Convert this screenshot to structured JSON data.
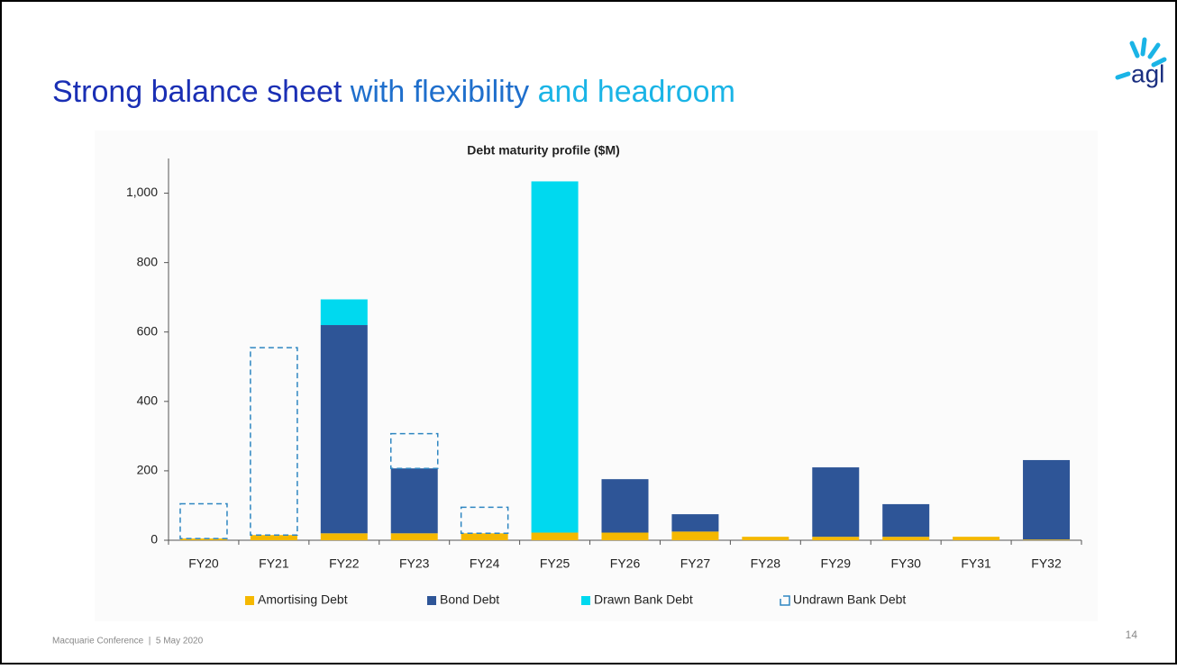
{
  "slide": {
    "title_parts": [
      {
        "text": "Strong balance sheet",
        "color": "#1a2fb4"
      },
      {
        "text": "with flexibility",
        "color": "#1f6fcc"
      },
      {
        "text": "and headroom",
        "color": "#1ab4e6"
      }
    ],
    "logo": "agl",
    "footer": "Macquarie Conference  |  5 May 2020",
    "page_number": "14"
  },
  "chart_data": {
    "type": "stacked_bar",
    "title": "Debt maturity profile ($M)",
    "categories": [
      "FY20",
      "FY21",
      "FY22",
      "FY23",
      "FY24",
      "FY25",
      "FY26",
      "FY27",
      "FY28",
      "FY29",
      "FY30",
      "FY31",
      "FY32"
    ],
    "series": [
      {
        "name": "Amortising Debt",
        "color": "#f5b800",
        "values": [
          5,
          15,
          20,
          20,
          20,
          22,
          22,
          25,
          10,
          10,
          10,
          10,
          2
        ]
      },
      {
        "name": "Bond Debt",
        "color": "#2e5597",
        "values": [
          null,
          null,
          600,
          187,
          null,
          null,
          154,
          50,
          null,
          200,
          94,
          null,
          229
        ]
      },
      {
        "name": "Drawn Bank Debt",
        "color": "#00d9ef",
        "values": [
          null,
          null,
          74,
          null,
          null,
          1012,
          null,
          null,
          null,
          null,
          null,
          null,
          null
        ]
      },
      {
        "name": "Undrawn Bank Debt",
        "color": "#2e86c1",
        "style": "dashed",
        "values": [
          100,
          540,
          null,
          100,
          75,
          null,
          null,
          null,
          null,
          null,
          null,
          null,
          null
        ]
      }
    ],
    "ylim": [
      0,
      1100
    ],
    "yticks": [
      0,
      200,
      400,
      600,
      800,
      {
        "value": 1000,
        "label": "1,000"
      }
    ],
    "grid": false,
    "legend": "bottom"
  }
}
